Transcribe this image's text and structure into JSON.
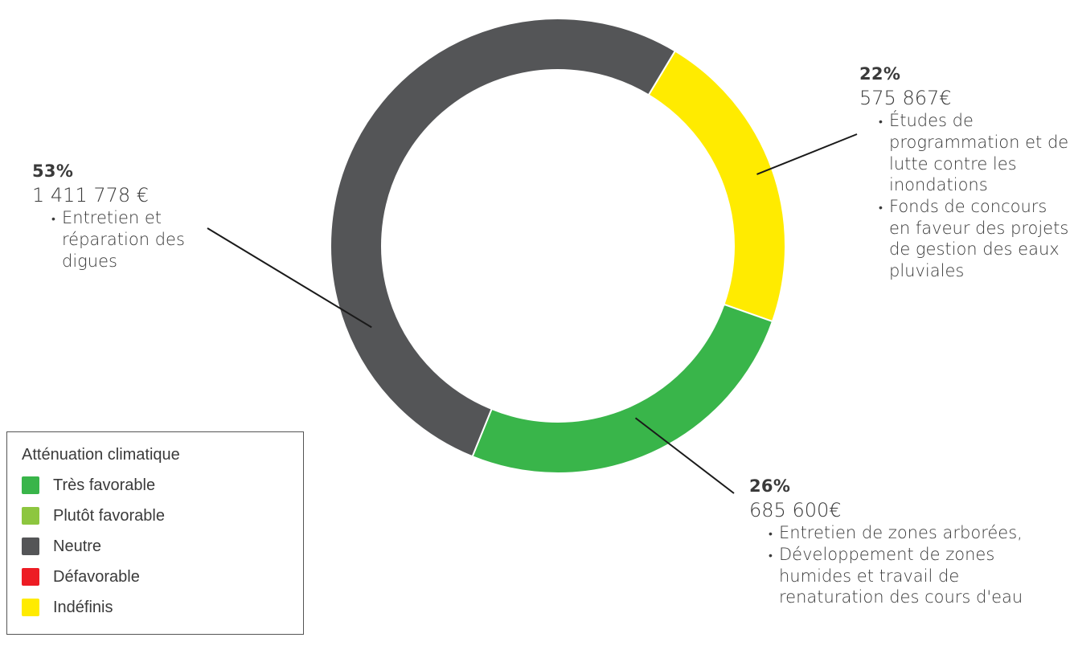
{
  "chart_data": {
    "type": "pie",
    "donut": true,
    "slices": [
      {
        "key": "undef",
        "category": "Indéfinis",
        "percent": 22,
        "amount": "575 867€",
        "color": "#FFEB00"
      },
      {
        "key": "fav",
        "category": "Très favorable",
        "percent": 26,
        "amount": "685 600€",
        "color": "#39B54A"
      },
      {
        "key": "neutral",
        "category": "Neutre",
        "percent": 53,
        "amount": "1 411 778 €",
        "color": "#545557"
      }
    ],
    "annotations": {
      "neutral": {
        "pct": "53%",
        "amount": "1 411 778 €",
        "items": [
          "Entretien et réparation des digues"
        ]
      },
      "undef": {
        "pct": "22%",
        "amount": "575 867€",
        "items": [
          "Études de programmation et de lutte contre les inondations",
          "Fonds de concours en faveur des projets de gestion des eaux pluviales"
        ]
      },
      "fav": {
        "pct": "26%",
        "amount": "685 600€",
        "items": [
          "Entretien de zones arborées,",
          "Développement de zones humides et travail de renaturation des cours d'eau"
        ]
      }
    },
    "legend": {
      "title": "Atténuation climatique",
      "placement": "bottom-left",
      "items": [
        {
          "label": "Très favorable",
          "color": "#39B54A"
        },
        {
          "label": "Plutôt favorable",
          "color": "#8DC63F"
        },
        {
          "label": "Neutre",
          "color": "#545557"
        },
        {
          "label": "Défavorable",
          "color": "#ED1C24"
        },
        {
          "label": "Indéfinis",
          "color": "#FFEB00"
        }
      ]
    }
  }
}
